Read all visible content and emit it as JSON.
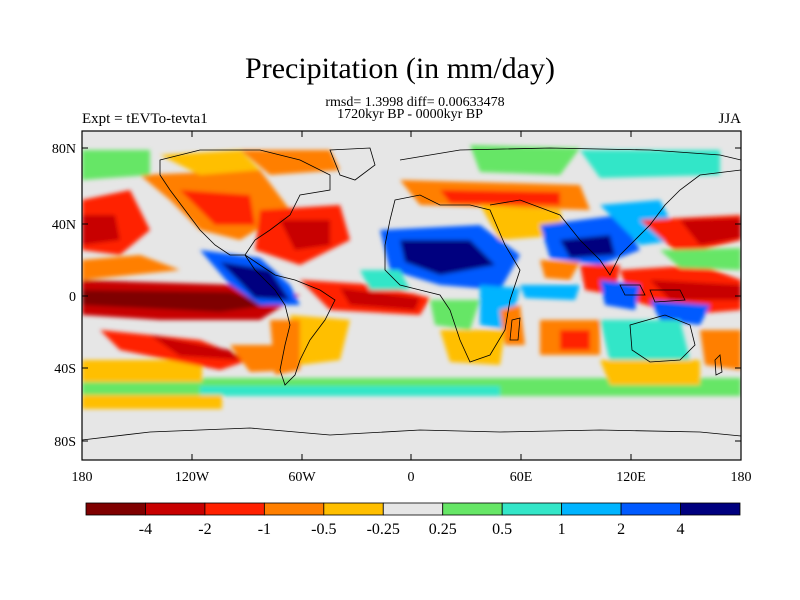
{
  "title": "Precipitation (in mm/day)",
  "stats_line": "rmsd= 1.3998 diff= 0.00633478",
  "period_line": "1720kyr BP - 0000kyr BP",
  "experiment_label": "Expt = tEVTo-tevta1",
  "season_label": "JJA",
  "lat_ticks": [
    "80N",
    "40N",
    "0",
    "40S",
    "80S"
  ],
  "lon_ticks": [
    "180",
    "120W",
    "60W",
    "0",
    "60E",
    "120E",
    "180"
  ],
  "colorbar": {
    "labels": [
      "-4",
      "-2",
      "-1",
      "-0.5",
      "-0.25",
      "0.25",
      "0.5",
      "1",
      "2",
      "4"
    ],
    "colors": [
      "#7f0000",
      "#c80000",
      "#ff2000",
      "#ff7f00",
      "#ffbf00",
      "#e6e6e6",
      "#66e666",
      "#33e6c8",
      "#00b4ff",
      "#005aff",
      "#00007f"
    ]
  }
}
